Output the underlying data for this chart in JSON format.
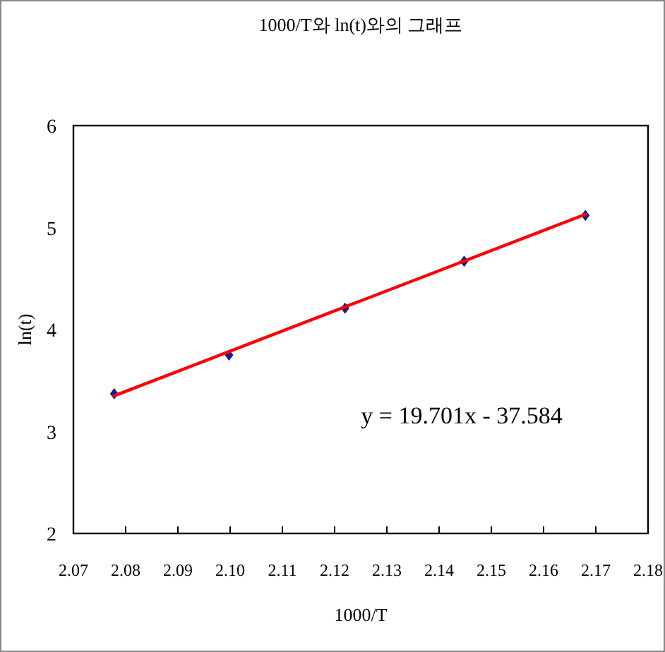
{
  "chart_data": {
    "type": "scatter",
    "title": "1000/T와 ln(t)와의 그래프",
    "xlabel": "1000/T",
    "ylabel": "ln(t)",
    "xlim": [
      2.07,
      2.18
    ],
    "xticks": [
      {
        "value": 2.07,
        "label": "2.07"
      },
      {
        "value": 2.08,
        "label": "2.08"
      },
      {
        "value": 2.09,
        "label": "2.09"
      },
      {
        "value": 2.1,
        "label": "2.10"
      },
      {
        "value": 2.11,
        "label": "2.11"
      },
      {
        "value": 2.12,
        "label": "2.12"
      },
      {
        "value": 2.13,
        "label": "2.13"
      },
      {
        "value": 2.14,
        "label": "2.14"
      },
      {
        "value": 2.15,
        "label": "2.15"
      },
      {
        "value": 2.16,
        "label": "2.16"
      },
      {
        "value": 2.17,
        "label": "2.17"
      },
      {
        "value": 2.18,
        "label": "2.18"
      }
    ],
    "ylim": [
      2,
      6
    ],
    "yticks": [
      2,
      3,
      4,
      5,
      6
    ],
    "grid": false,
    "series": [
      {
        "marker": "diamond",
        "color": "#1a1a8c",
        "x": [
          2.0778,
          2.0998,
          2.122,
          2.1448,
          2.168
        ],
        "values": [
          3.37,
          3.75,
          4.21,
          4.67,
          5.12
        ]
      },
      {
        "type": "line",
        "marker": "none",
        "color": "#ff0000",
        "x": [
          2.0778,
          2.168
        ],
        "values": [
          3.35,
          5.13
        ]
      }
    ],
    "annotations": [
      "y = 19.701x - 37.584"
    ]
  }
}
